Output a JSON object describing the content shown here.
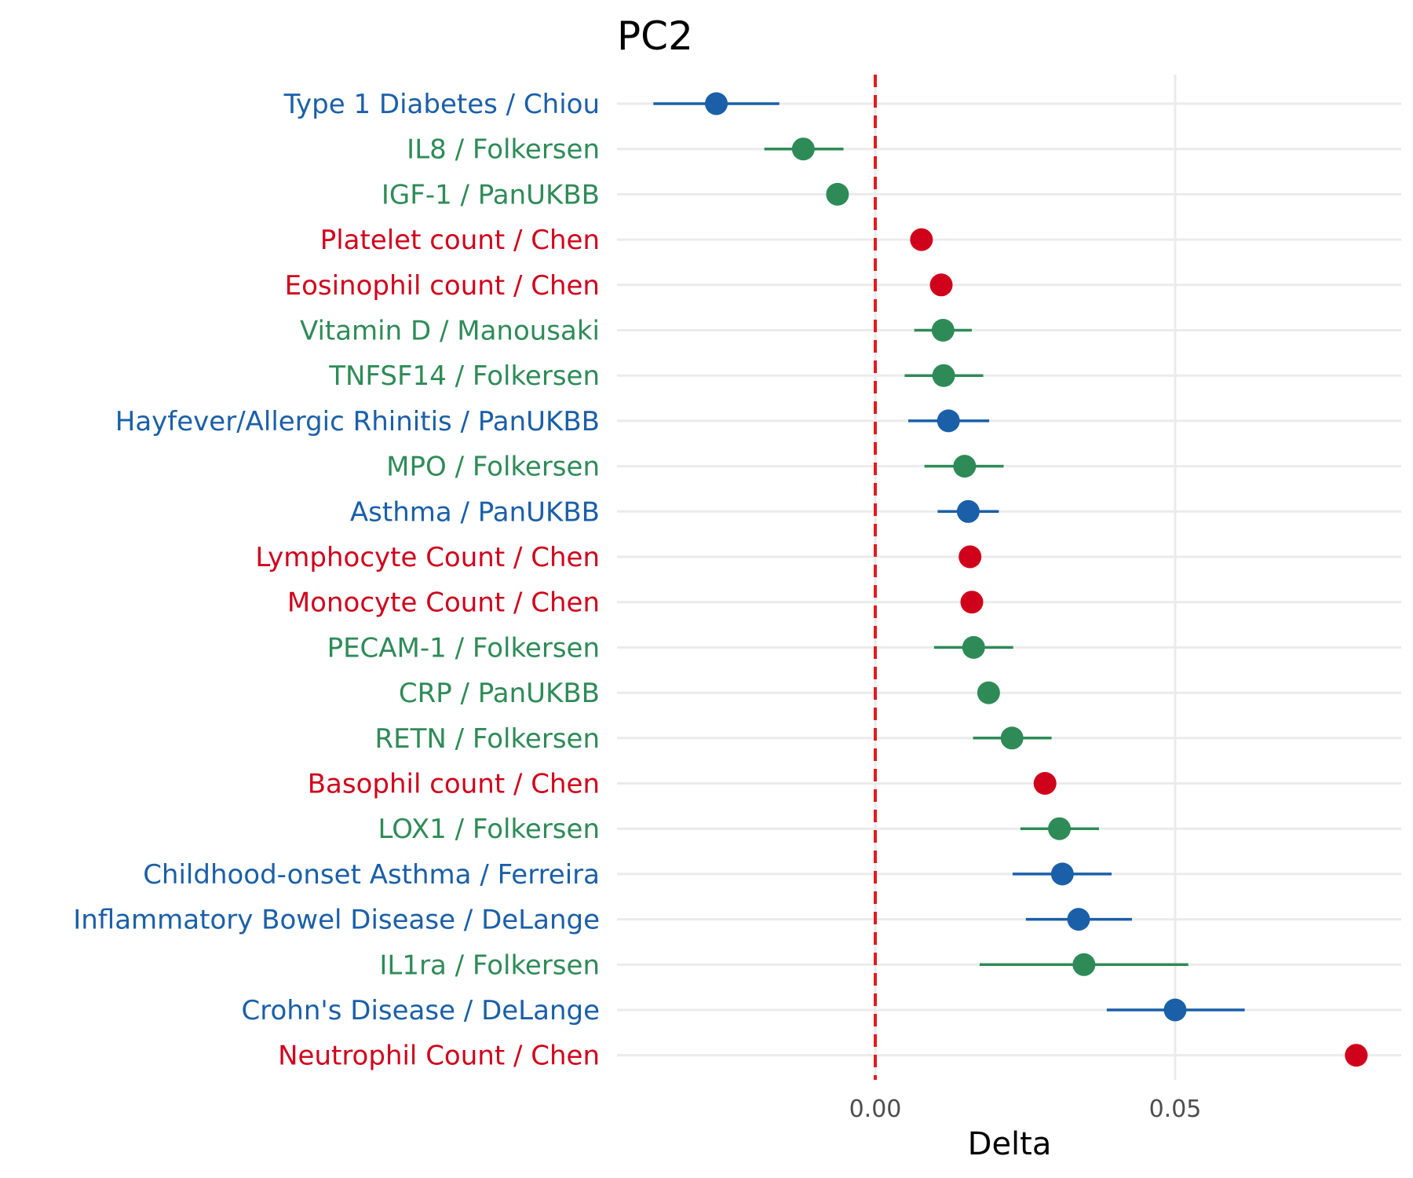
{
  "chart_data": {
    "type": "scatter",
    "title": "PC2",
    "xlabel": "Delta",
    "ylabel": "",
    "xlim": [
      -0.043,
      0.088
    ],
    "x_ticks": [
      0.0,
      0.05
    ],
    "x_tick_labels": [
      "0.00",
      "0.05"
    ],
    "reference_line": {
      "x": 0.0,
      "color": "#e41a1c",
      "style": "dashed"
    },
    "grid": true,
    "legend": "none",
    "category_colors": {
      "disease": "#1a5fa8",
      "protein": "#2e8b57",
      "blood": "#d0021b"
    },
    "points": [
      {
        "label": "Type 1 Diabetes / Chiou",
        "category": "disease",
        "x": -0.0265,
        "lo": -0.037,
        "hi": -0.016
      },
      {
        "label": "IL8  / Folkersen",
        "category": "protein",
        "x": -0.012,
        "lo": -0.0185,
        "hi": -0.0053
      },
      {
        "label": "IGF-1 / PanUKBB",
        "category": "protein",
        "x": -0.0063,
        "lo": null,
        "hi": null
      },
      {
        "label": "Platelet count / Chen",
        "category": "blood",
        "x": 0.0077,
        "lo": null,
        "hi": null
      },
      {
        "label": "Eosinophil count / Chen",
        "category": "blood",
        "x": 0.011,
        "lo": null,
        "hi": null
      },
      {
        "label": "Vitamin D / Manousaki",
        "category": "protein",
        "x": 0.0113,
        "lo": 0.0065,
        "hi": 0.0161
      },
      {
        "label": "TNFSF14 / Folkersen",
        "category": "protein",
        "x": 0.0114,
        "lo": 0.0049,
        "hi": 0.018
      },
      {
        "label": "Hayfever/Allergic Rhinitis / PanUKBB",
        "category": "disease",
        "x": 0.0122,
        "lo": 0.0055,
        "hi": 0.019
      },
      {
        "label": "MPO / Folkersen",
        "category": "protein",
        "x": 0.0149,
        "lo": 0.0082,
        "hi": 0.0214
      },
      {
        "label": "Asthma / PanUKBB",
        "category": "disease",
        "x": 0.0155,
        "lo": 0.0104,
        "hi": 0.0206
      },
      {
        "label": "Lymphocyte Count / Chen",
        "category": "blood",
        "x": 0.0158,
        "lo": null,
        "hi": null
      },
      {
        "label": "Monocyte Count / Chen",
        "category": "blood",
        "x": 0.0161,
        "lo": null,
        "hi": null
      },
      {
        "label": "PECAM-1 / Folkersen",
        "category": "protein",
        "x": 0.0164,
        "lo": 0.0098,
        "hi": 0.023
      },
      {
        "label": "CRP / PanUKBB",
        "category": "protein",
        "x": 0.0189,
        "lo": null,
        "hi": null
      },
      {
        "label": "RETN / Folkersen",
        "category": "protein",
        "x": 0.0228,
        "lo": 0.0163,
        "hi": 0.0294
      },
      {
        "label": "Basophil count / Chen",
        "category": "blood",
        "x": 0.0283,
        "lo": null,
        "hi": null
      },
      {
        "label": "LOX1 / Folkersen",
        "category": "protein",
        "x": 0.0307,
        "lo": 0.0242,
        "hi": 0.0373
      },
      {
        "label": "Childhood-onset Asthma / Ferreira",
        "category": "disease",
        "x": 0.0312,
        "lo": 0.0229,
        "hi": 0.0394
      },
      {
        "label": "Inflammatory Bowel Disease / DeLange",
        "category": "disease",
        "x": 0.0339,
        "lo": 0.0251,
        "hi": 0.0428
      },
      {
        "label": "IL1ra / Folkersen",
        "category": "protein",
        "x": 0.0348,
        "lo": 0.0174,
        "hi": 0.0522
      },
      {
        "label": "Crohn's Disease / DeLange",
        "category": "disease",
        "x": 0.05,
        "lo": 0.0386,
        "hi": 0.0616
      },
      {
        "label": "Neutrophil Count / Chen",
        "category": "blood",
        "x": 0.0802,
        "lo": null,
        "hi": null
      }
    ]
  }
}
